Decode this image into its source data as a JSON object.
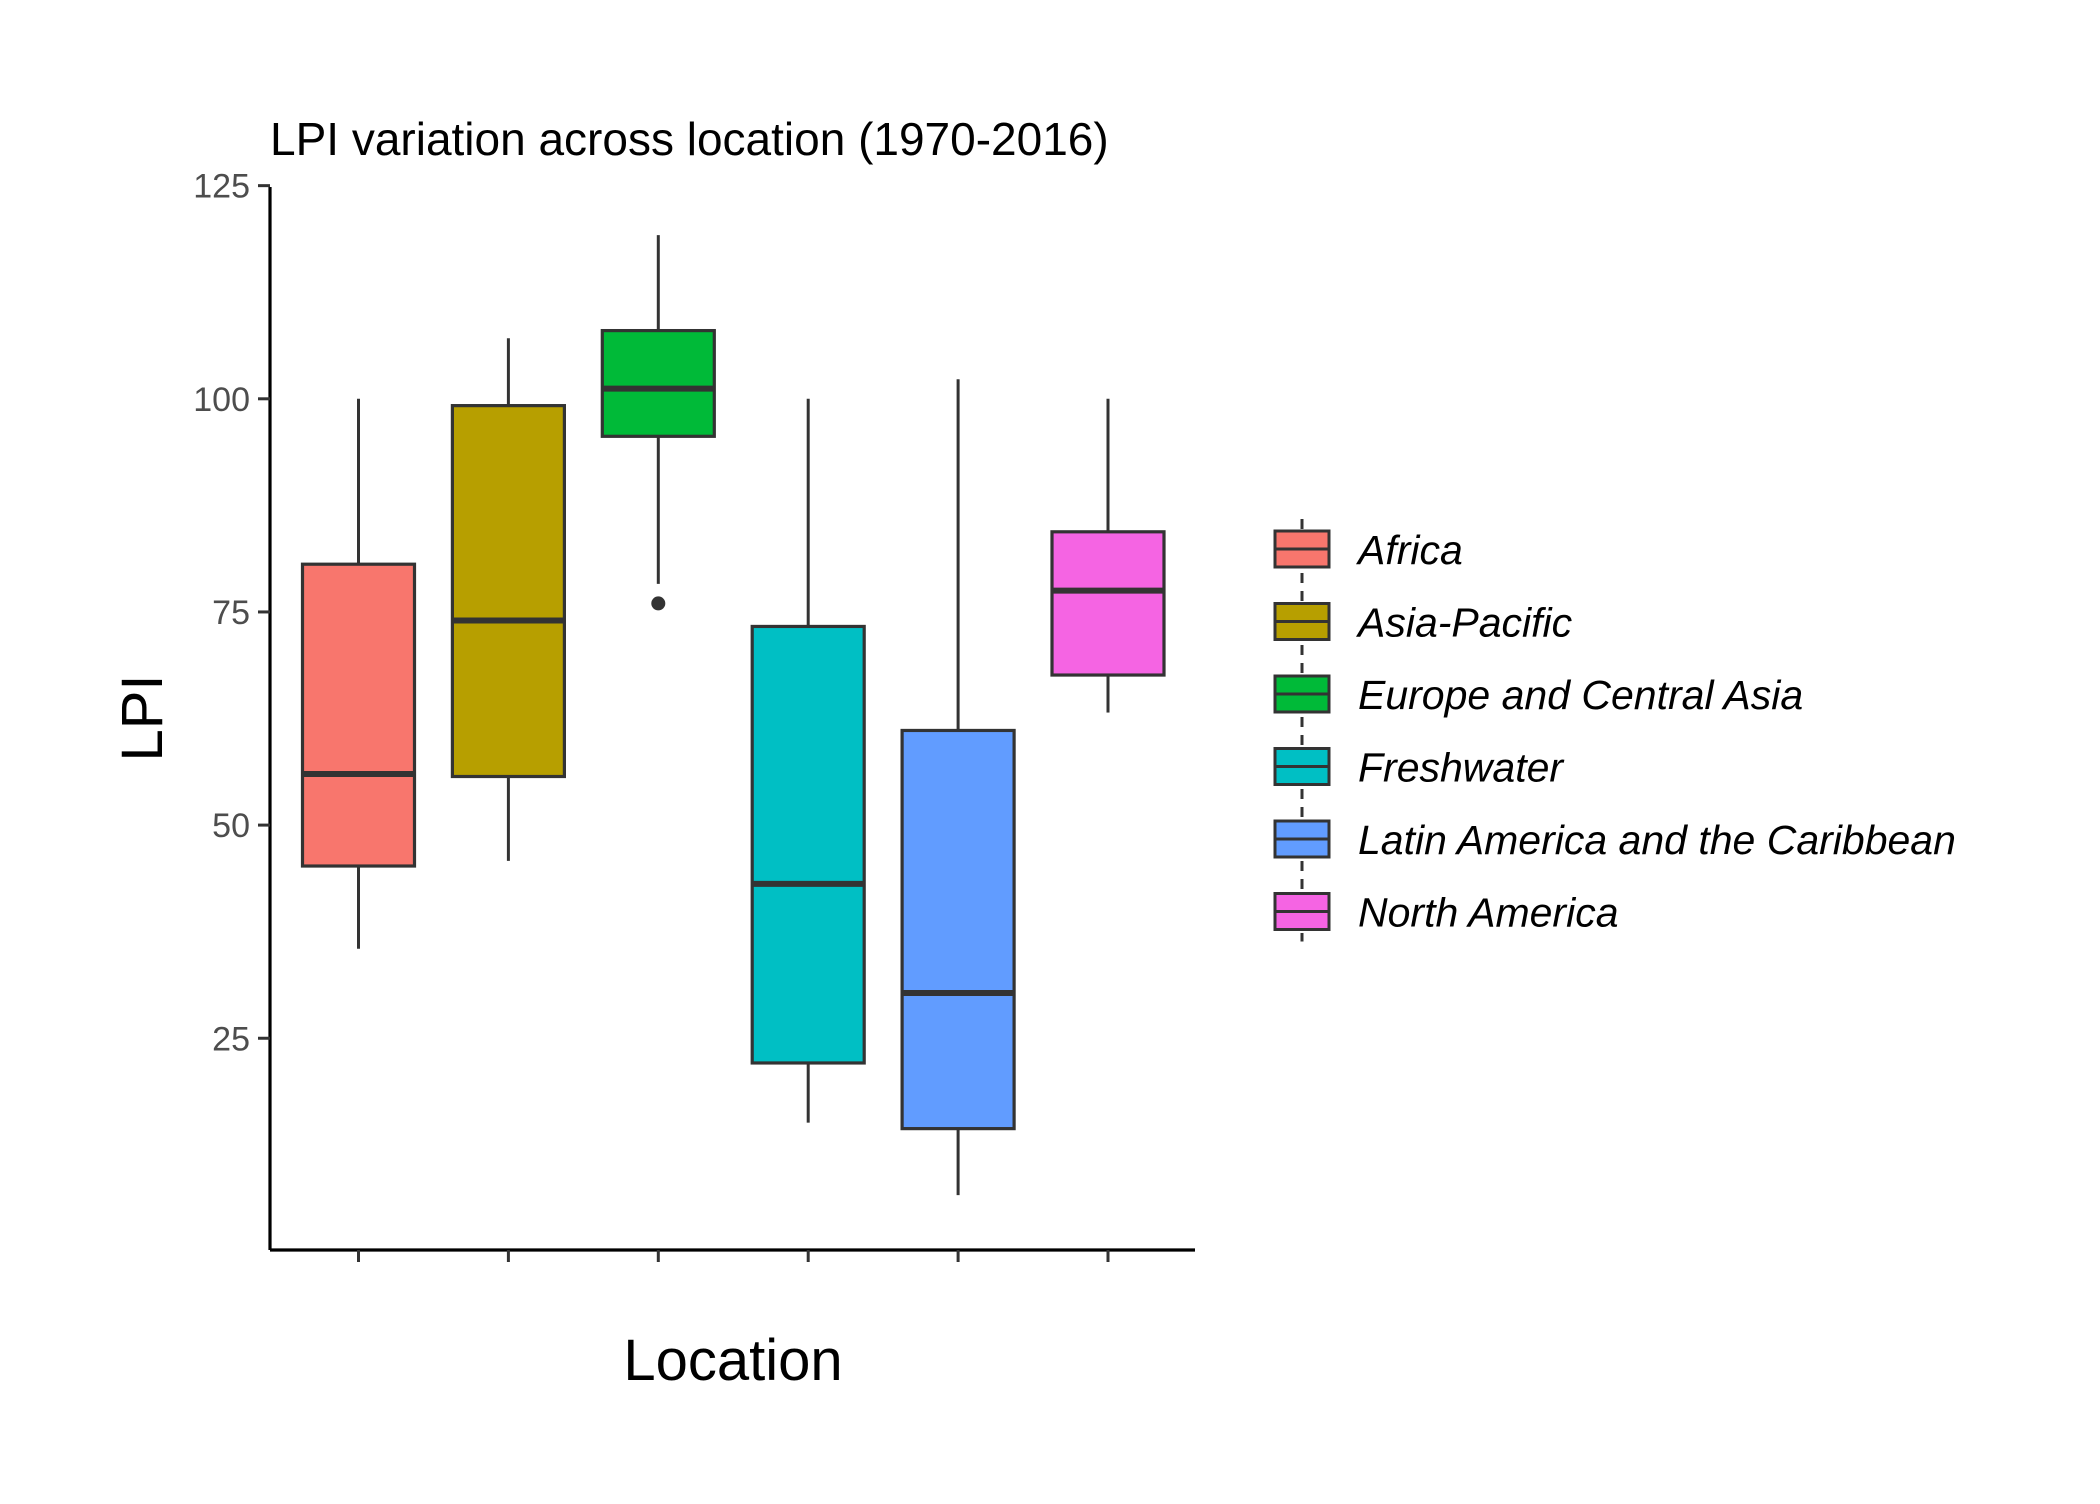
{
  "chart_data": {
    "type": "boxplot",
    "title": "LPI variation across location (1970-2016)",
    "xlabel": "Location",
    "ylabel": "LPI",
    "ylim": [
      0,
      125
    ],
    "yticks": [
      25,
      50,
      75,
      100,
      125
    ],
    "grid": false,
    "x_tick_labels_shown": false,
    "legend": {
      "position": "right",
      "title": ""
    },
    "categories": [
      "Africa",
      "Asia-Pacific",
      "Europe and Central Asia",
      "Freshwater",
      "Latin America and the Caribbean",
      "North America"
    ],
    "colors": [
      "#F8766D",
      "#B79F00",
      "#00BA38",
      "#00BFC4",
      "#619CFF",
      "#F564E3"
    ],
    "boxes": [
      {
        "name": "Africa",
        "whisker_low": 35.5,
        "q1": 45.2,
        "median": 56.0,
        "q3": 80.6,
        "whisker_high": 100.0,
        "outliers": []
      },
      {
        "name": "Asia-Pacific",
        "whisker_low": 45.8,
        "q1": 55.7,
        "median": 74.0,
        "q3": 99.2,
        "whisker_high": 107.1,
        "outliers": []
      },
      {
        "name": "Europe and Central Asia",
        "whisker_low": 78.3,
        "q1": 95.6,
        "median": 101.2,
        "q3": 108.0,
        "whisker_high": 119.2,
        "outliers": [
          76.0
        ]
      },
      {
        "name": "Freshwater",
        "whisker_low": 15.1,
        "q1": 22.1,
        "median": 43.1,
        "q3": 73.3,
        "whisker_high": 100.0,
        "outliers": []
      },
      {
        "name": "Latin America and the Caribbean",
        "whisker_low": 6.6,
        "q1": 14.4,
        "median": 30.3,
        "q3": 61.1,
        "whisker_high": 102.3,
        "outliers": []
      },
      {
        "name": "North America",
        "whisker_low": 63.2,
        "q1": 67.6,
        "median": 77.5,
        "q3": 84.4,
        "whisker_high": 100.0,
        "outliers": []
      }
    ]
  }
}
